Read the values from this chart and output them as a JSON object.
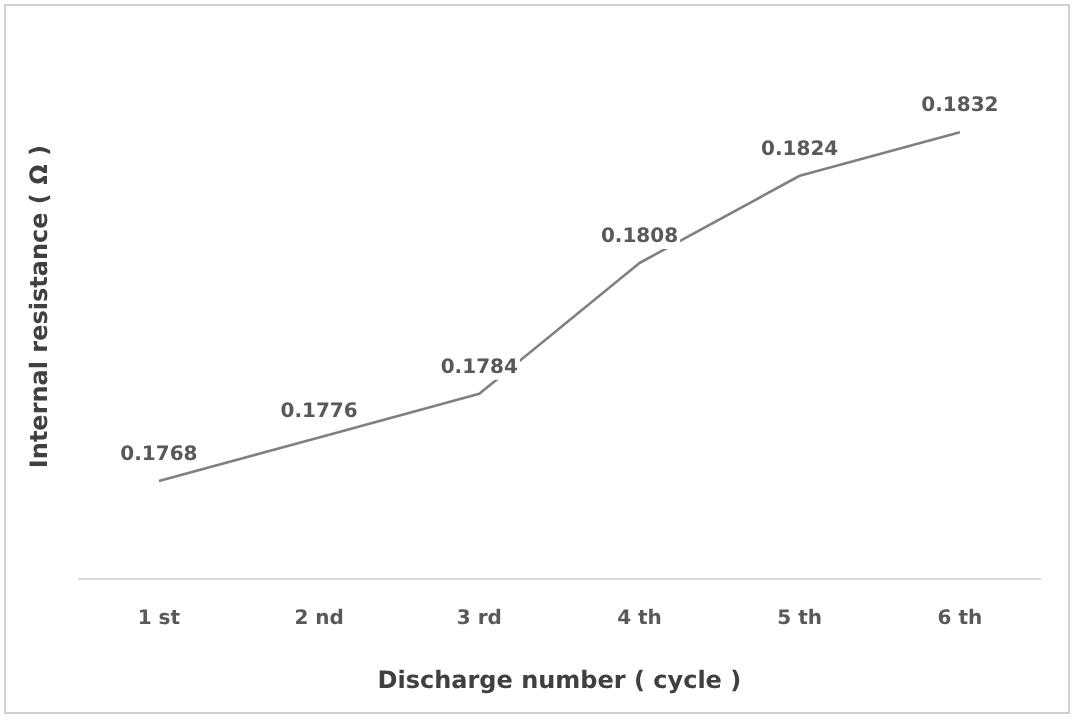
{
  "chart_data": {
    "type": "line",
    "xlabel": "Discharge number ( cycle )",
    "ylabel": "Internal resistance ( Ω )",
    "categories": [
      "1 st",
      "2 nd",
      "3 rd",
      "4 th",
      "5 th",
      "6 th"
    ],
    "series": [
      {
        "color": "#808080",
        "values": [
          0.1768,
          0.1776,
          0.1784,
          0.1808,
          0.1824,
          0.1832
        ]
      }
    ],
    "tick_labels": "x",
    "data_labels": true,
    "legend": false,
    "grid": false,
    "marker": "none"
  }
}
